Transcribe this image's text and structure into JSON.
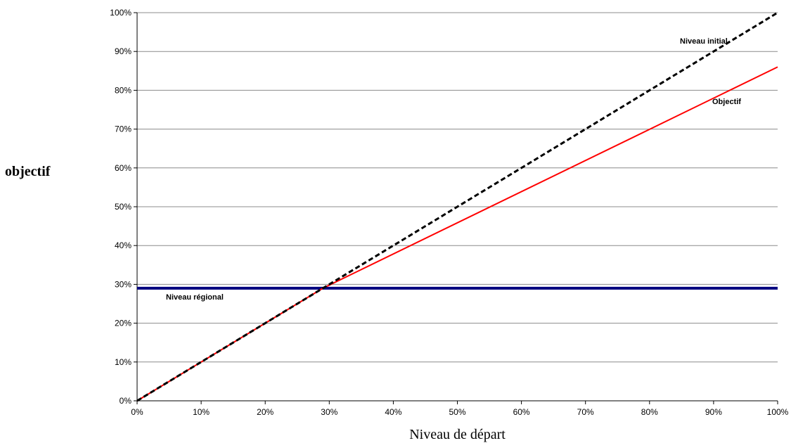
{
  "chart_data": {
    "type": "line",
    "xlabel": "Niveau de départ",
    "ylabel": "objectif",
    "xlim": [
      0,
      100
    ],
    "ylim": [
      0,
      100
    ],
    "x_unit": "%",
    "y_unit": "%",
    "x_ticks": [
      "0%",
      "10%",
      "20%",
      "30%",
      "40%",
      "50%",
      "60%",
      "70%",
      "80%",
      "90%",
      "100%"
    ],
    "y_ticks": [
      "0%",
      "10%",
      "20%",
      "30%",
      "40%",
      "50%",
      "60%",
      "70%",
      "80%",
      "90%",
      "100%"
    ],
    "grid": "horizontal",
    "legend": "none",
    "series": [
      {
        "name": "Niveau initial",
        "style": "dashed",
        "color": "#000000",
        "x": [
          0,
          100
        ],
        "y": [
          0,
          100
        ]
      },
      {
        "name": "Objectif",
        "style": "solid",
        "color": "#ff0000",
        "x": [
          0,
          29,
          100
        ],
        "y": [
          0,
          29,
          86
        ]
      },
      {
        "name": "Niveau régional",
        "style": "solid-thick",
        "color": "#000080",
        "x": [
          0,
          100
        ],
        "y": [
          29,
          29
        ]
      }
    ]
  }
}
